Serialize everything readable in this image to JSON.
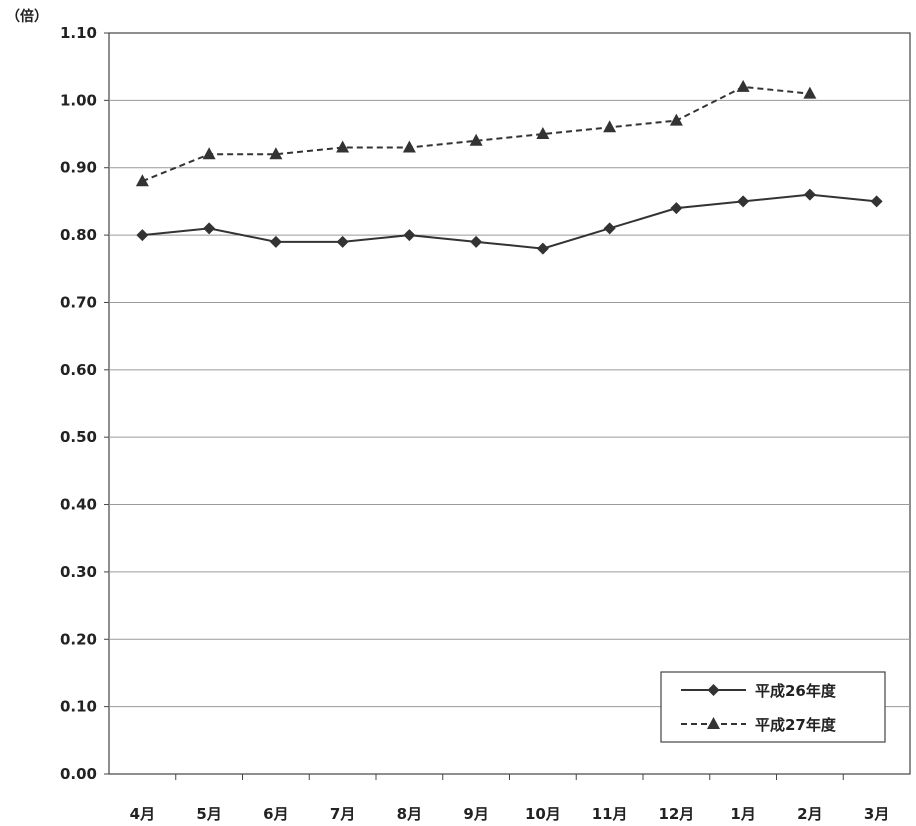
{
  "chart_data": {
    "type": "line",
    "unit_label": "（倍）",
    "categories": [
      "4月",
      "5月",
      "6月",
      "7月",
      "8月",
      "9月",
      "10月",
      "11月",
      "12月",
      "1月",
      "2月",
      "3月"
    ],
    "ylim": [
      0,
      1.1
    ],
    "yticks": [
      "0.00",
      "0.10",
      "0.20",
      "0.30",
      "0.40",
      "0.50",
      "0.60",
      "0.70",
      "0.80",
      "0.90",
      "1.00",
      "1.10"
    ],
    "grid": true,
    "legend_position": "bottom-right",
    "series": [
      {
        "name": "平成26年度",
        "style": "solid",
        "marker": "diamond",
        "color": "#333333",
        "values": [
          0.8,
          0.81,
          0.79,
          0.79,
          0.8,
          0.79,
          0.78,
          0.81,
          0.84,
          0.85,
          0.86,
          0.85
        ]
      },
      {
        "name": "平成27年度",
        "style": "dashed",
        "marker": "triangle",
        "color": "#333333",
        "values": [
          0.88,
          0.92,
          0.92,
          0.93,
          0.93,
          0.94,
          0.95,
          0.96,
          0.97,
          1.02,
          1.01,
          null
        ]
      }
    ]
  }
}
